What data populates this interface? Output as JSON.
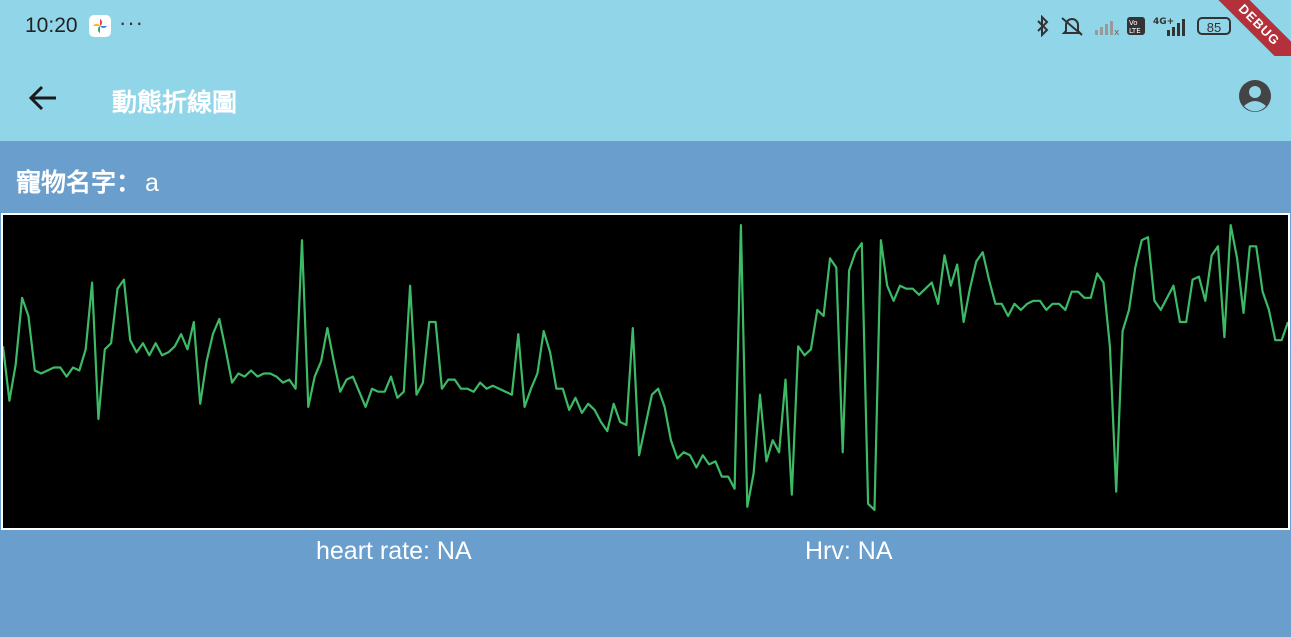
{
  "status_bar": {
    "time": "10:20",
    "more": "···",
    "battery": "85",
    "debug_label": "DEBUG"
  },
  "app_bar": {
    "title": "動態折線圖",
    "back_icon": "arrow-back-icon",
    "profile_icon": "account-circle-icon"
  },
  "pet": {
    "label": "寵物名字：",
    "name": "a"
  },
  "metrics": {
    "heart_rate": "heart rate: NA",
    "hrv": "Hrv: NA"
  },
  "colors": {
    "status_bg": "#91d5e8",
    "body_bg": "#6a9ecd",
    "chart_bg": "#000000",
    "line": "#3dba66",
    "debug": "#b4303a"
  },
  "chart_data": {
    "type": "line",
    "title": "",
    "xlabel": "",
    "ylabel": "",
    "grid": false,
    "ylim": [
      0,
      100
    ],
    "series": [
      {
        "values": [
          58,
          40,
          52,
          74,
          68,
          50,
          49,
          50,
          51,
          51,
          48,
          51,
          50,
          57,
          79,
          34,
          57,
          59,
          77,
          80,
          60,
          56,
          59,
          55,
          59,
          55,
          56,
          58,
          62,
          57,
          66,
          39,
          53,
          62,
          67,
          57,
          46,
          49,
          48,
          50,
          48,
          49,
          49,
          48,
          46,
          47,
          44,
          93,
          38,
          48,
          53,
          64,
          53,
          43,
          47,
          48,
          43,
          38,
          44,
          43,
          43,
          48,
          41,
          43,
          78,
          42,
          46,
          66,
          66,
          44,
          47,
          47,
          44,
          44,
          43,
          46,
          44,
          45,
          44,
          43,
          42,
          62,
          38,
          44,
          49,
          63,
          56,
          44,
          44,
          37,
          41,
          36,
          39,
          37,
          33,
          30,
          39,
          33,
          32,
          64,
          22,
          32,
          42,
          44,
          38,
          27,
          21,
          23,
          22,
          18,
          22,
          19,
          20,
          15,
          15,
          11,
          98,
          5,
          16,
          42,
          20,
          27,
          23,
          47,
          9,
          58,
          55,
          57,
          70,
          68,
          87,
          84,
          23,
          83,
          89,
          92,
          6,
          4,
          93,
          78,
          73,
          78,
          77,
          77,
          75,
          77,
          79,
          72,
          88,
          78,
          85,
          66,
          77,
          86,
          89,
          80,
          72,
          72,
          68,
          72,
          70,
          72,
          73,
          73,
          70,
          72,
          72,
          70,
          76,
          76,
          74,
          74,
          82,
          79,
          58,
          10,
          63,
          70,
          84,
          93,
          94,
          73,
          70,
          74,
          78,
          66,
          66,
          80,
          81,
          73,
          88,
          91,
          61,
          98,
          87,
          69,
          91,
          91,
          76,
          70,
          60,
          60,
          66
        ]
      }
    ]
  }
}
